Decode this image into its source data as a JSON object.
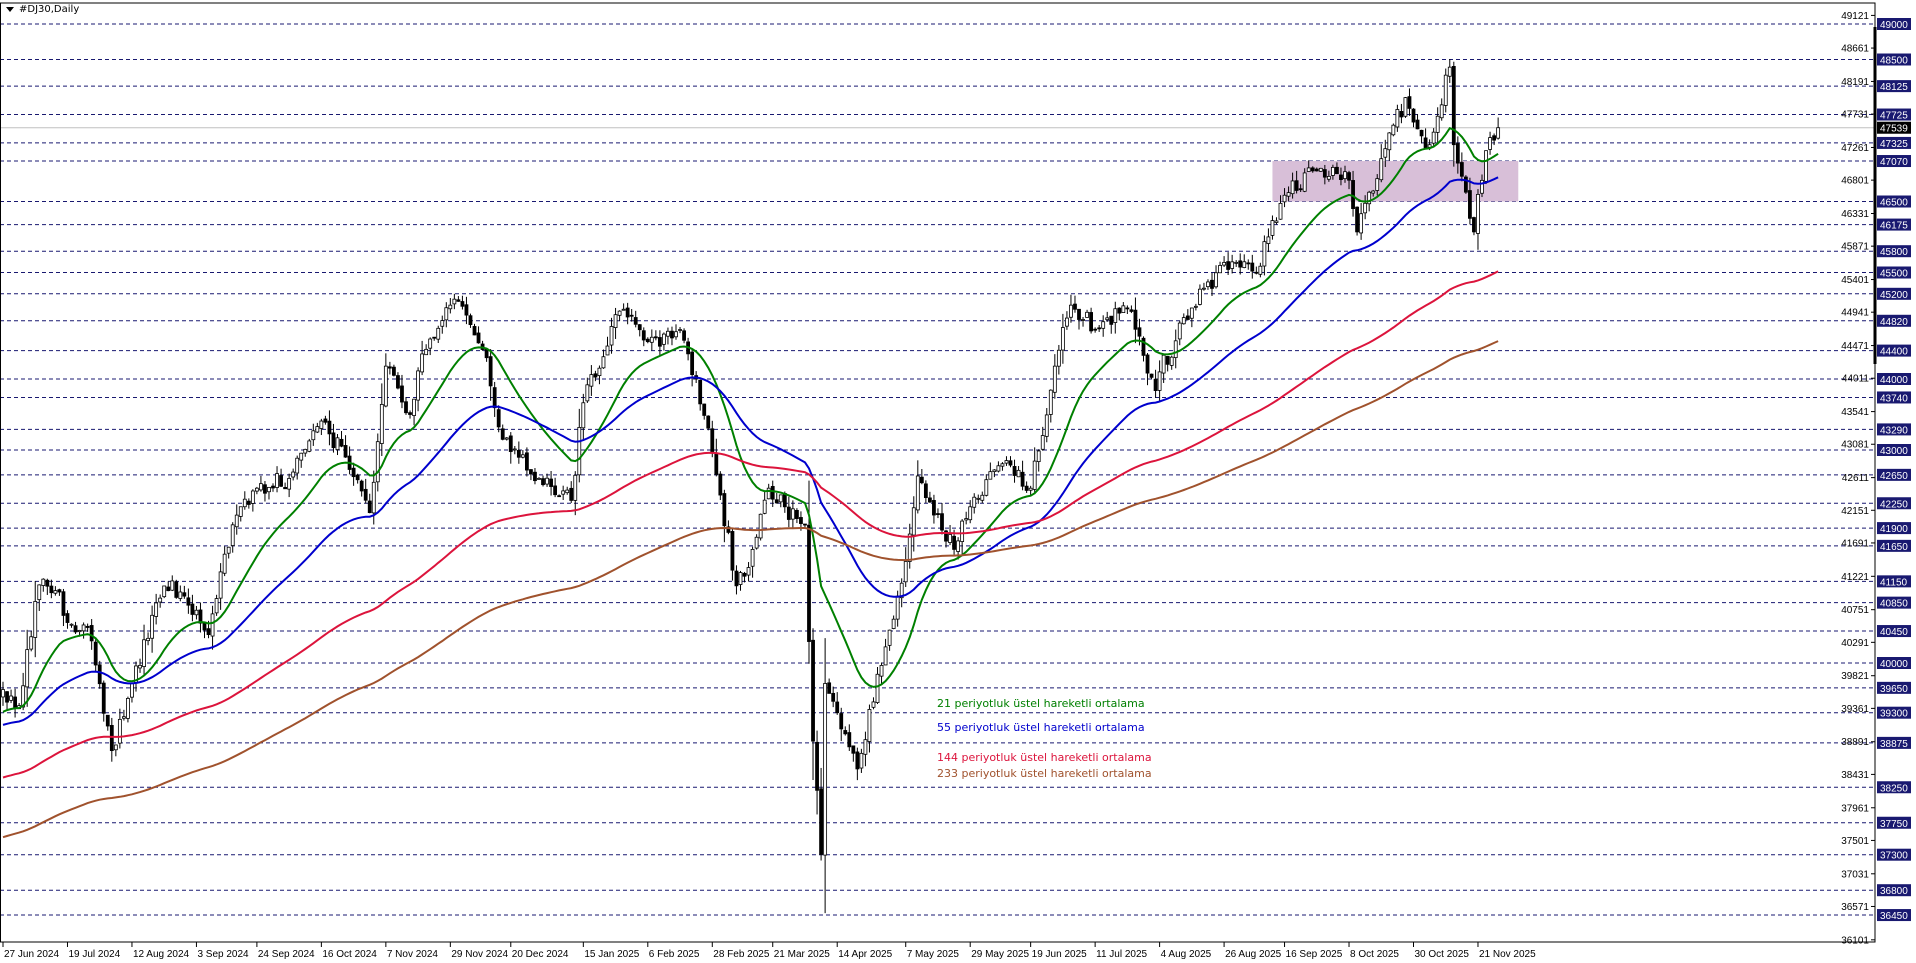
{
  "window": {
    "title": "#DJ30,Daily"
  },
  "colors": {
    "background": "#ffffff",
    "grid_level": "#191970",
    "bull_body": "#ffffff",
    "bear_body": "#000000",
    "zone": "#d8bfd8",
    "current_price_line": "#c0c0c0",
    "ema21": "#008000",
    "ema55": "#0000cd",
    "ema144": "#dc143c",
    "ema233": "#a0522d"
  },
  "legend": [
    {
      "text": "21 periyotluk üstel hareketli ortalama",
      "color": "#008000"
    },
    {
      "text": "55 periyotluk üstel hareketli ortalama",
      "color": "#0000cd"
    },
    {
      "text": "144 periyotluk üstel hareketli ortalama",
      "color": "#dc143c"
    },
    {
      "text": "233 periyotluk üstel hareketli ortalama",
      "color": "#a0522d"
    }
  ],
  "chart_data": {
    "type": "candlestick",
    "symbol": "#DJ30",
    "timeframe": "Daily",
    "ylim": [
      36071,
      49281
    ],
    "grid": false,
    "current_price": 47539,
    "x_tick_labels": [
      "27 Jun 2024",
      "19 Jul 2024",
      "12 Aug 2024",
      "3 Sep 2024",
      "24 Sep 2024",
      "16 Oct 2024",
      "7 Nov 2024",
      "29 Nov 2024",
      "20 Dec 2024",
      "15 Jan 2025",
      "6 Feb 2025",
      "28 Feb 2025",
      "21 Mar 2025",
      "14 Apr 2025",
      "7 May 2025",
      "29 May 2025",
      "19 Jun 2025",
      "11 Jul 2025",
      "4 Aug 2025",
      "26 Aug 2025",
      "16 Sep 2025",
      "8 Oct 2025",
      "30 Oct 2025",
      "21 Nov 2025"
    ],
    "x_tick_dates": [
      "2024-06-27",
      "2024-07-19",
      "2024-08-12",
      "2024-09-03",
      "2024-09-24",
      "2024-10-16",
      "2024-11-07",
      "2024-11-29",
      "2024-12-20",
      "2025-01-15",
      "2025-02-06",
      "2025-02-28",
      "2025-03-21",
      "2025-04-14",
      "2025-05-07",
      "2025-05-29",
      "2025-06-19",
      "2025-07-11",
      "2025-08-04",
      "2025-08-26",
      "2025-09-16",
      "2025-10-08",
      "2025-10-30",
      "2025-11-21"
    ],
    "y_tick_labels": [
      49121,
      48661,
      48191,
      47731,
      47261,
      46801,
      46331,
      45871,
      45401,
      44941,
      44471,
      44011,
      43541,
      43081,
      42611,
      42151,
      41691,
      41221,
      40751,
      40291,
      39821,
      39361,
      38891,
      38431,
      37961,
      37501,
      37031,
      36571,
      36101
    ],
    "horizontal_levels": [
      49000,
      48500,
      48125,
      47725,
      47325,
      47070,
      46500,
      46175,
      45800,
      45500,
      45200,
      44820,
      44400,
      44000,
      43740,
      43290,
      43000,
      42650,
      42250,
      41900,
      41650,
      41150,
      40850,
      40450,
      40000,
      39650,
      39300,
      38875,
      38250,
      37750,
      37300,
      36800,
      36450
    ],
    "zone": {
      "from_date": "2025-09-11",
      "to_date": "2025-12-05",
      "price_low": 46500,
      "price_high": 47070
    },
    "approx_closes": [
      [
        "2024-06-27",
        39626
      ],
      [
        "2024-07-03",
        39400
      ],
      [
        "2024-07-10",
        41100
      ],
      [
        "2024-07-17",
        41000
      ],
      [
        "2024-07-19",
        40570
      ],
      [
        "2024-07-26",
        40500
      ],
      [
        "2024-08-05",
        38766
      ],
      [
        "2024-08-12",
        39712
      ],
      [
        "2024-08-22",
        41085
      ],
      [
        "2024-08-28",
        41000
      ],
      [
        "2024-09-03",
        40743
      ],
      [
        "2024-09-06",
        40400
      ],
      [
        "2024-09-16",
        41946
      ],
      [
        "2024-09-24",
        42462
      ],
      [
        "2024-10-04",
        42600
      ],
      [
        "2024-10-16",
        43408
      ],
      [
        "2024-10-24",
        42900
      ],
      [
        "2024-11-01",
        42118
      ],
      [
        "2024-11-07",
        44181
      ],
      [
        "2024-11-15",
        43500
      ],
      [
        "2024-11-20",
        44353
      ],
      [
        "2024-11-29",
        45040
      ],
      [
        "2024-12-05",
        44900
      ],
      [
        "2024-12-12",
        44300
      ],
      [
        "2024-12-18",
        43150
      ],
      [
        "2024-12-20",
        42978
      ],
      [
        "2024-12-31",
        42600
      ],
      [
        "2025-01-10",
        42290
      ],
      [
        "2025-01-15",
        43665
      ],
      [
        "2025-01-28",
        44956
      ],
      [
        "2025-02-06",
        44526
      ],
      [
        "2025-02-18",
        44697
      ],
      [
        "2025-02-24",
        44000
      ],
      [
        "2025-02-28",
        42978
      ],
      [
        "2025-03-10",
        41087
      ],
      [
        "2025-03-14",
        41600
      ],
      [
        "2025-03-20",
        42462
      ],
      [
        "2025-03-26",
        42200
      ],
      [
        "2025-04-02",
        41946
      ],
      [
        "2025-04-04",
        38900
      ],
      [
        "2025-04-08",
        37305
      ],
      [
        "2025-04-09",
        39712
      ],
      [
        "2025-04-14",
        39300
      ],
      [
        "2025-04-21",
        38508
      ],
      [
        "2025-04-30",
        40227
      ],
      [
        "2025-05-07",
        41430
      ],
      [
        "2025-05-12",
        42634
      ],
      [
        "2025-05-23",
        41600
      ],
      [
        "2025-05-29",
        42200
      ],
      [
        "2025-06-10",
        42806
      ],
      [
        "2025-06-19",
        42462
      ],
      [
        "2025-06-27",
        44181
      ],
      [
        "2025-07-03",
        45040
      ],
      [
        "2025-07-11",
        44697
      ],
      [
        "2025-07-23",
        45000
      ],
      [
        "2025-08-01",
        43837
      ],
      [
        "2025-08-04",
        44100
      ],
      [
        "2025-08-14",
        45000
      ],
      [
        "2025-08-26",
        45642
      ],
      [
        "2025-09-05",
        45500
      ],
      [
        "2025-09-16",
        46588
      ],
      [
        "2025-09-26",
        46931
      ],
      [
        "2025-10-08",
        46800
      ],
      [
        "2025-10-10",
        46072
      ],
      [
        "2025-10-20",
        47103
      ],
      [
        "2025-10-28",
        47963
      ],
      [
        "2025-10-30",
        47619
      ],
      [
        "2025-11-05",
        47300
      ],
      [
        "2025-11-12",
        48392
      ],
      [
        "2025-11-13",
        47300
      ],
      [
        "2025-11-20",
        46072
      ],
      [
        "2025-11-21",
        46600
      ],
      [
        "2025-11-26",
        47400
      ],
      [
        "2025-11-28",
        47539
      ]
    ],
    "ema_start_values": {
      "ema21": 39282,
      "ema55": 39110,
      "ema144": 38370,
      "ema233": 37528
    },
    "series": [
      {
        "name": "21 periyotluk üstel hareketli ortalama",
        "period": 21,
        "color": "#008000"
      },
      {
        "name": "55 periyotluk üstel hareketli ortalama",
        "period": 55,
        "color": "#0000cd"
      },
      {
        "name": "144 periyotluk üstel hareketli ortalama",
        "period": 144,
        "color": "#dc143c"
      },
      {
        "name": "233 periyotluk üstel hareketli ortalama",
        "period": 233,
        "color": "#a0522d"
      }
    ]
  }
}
